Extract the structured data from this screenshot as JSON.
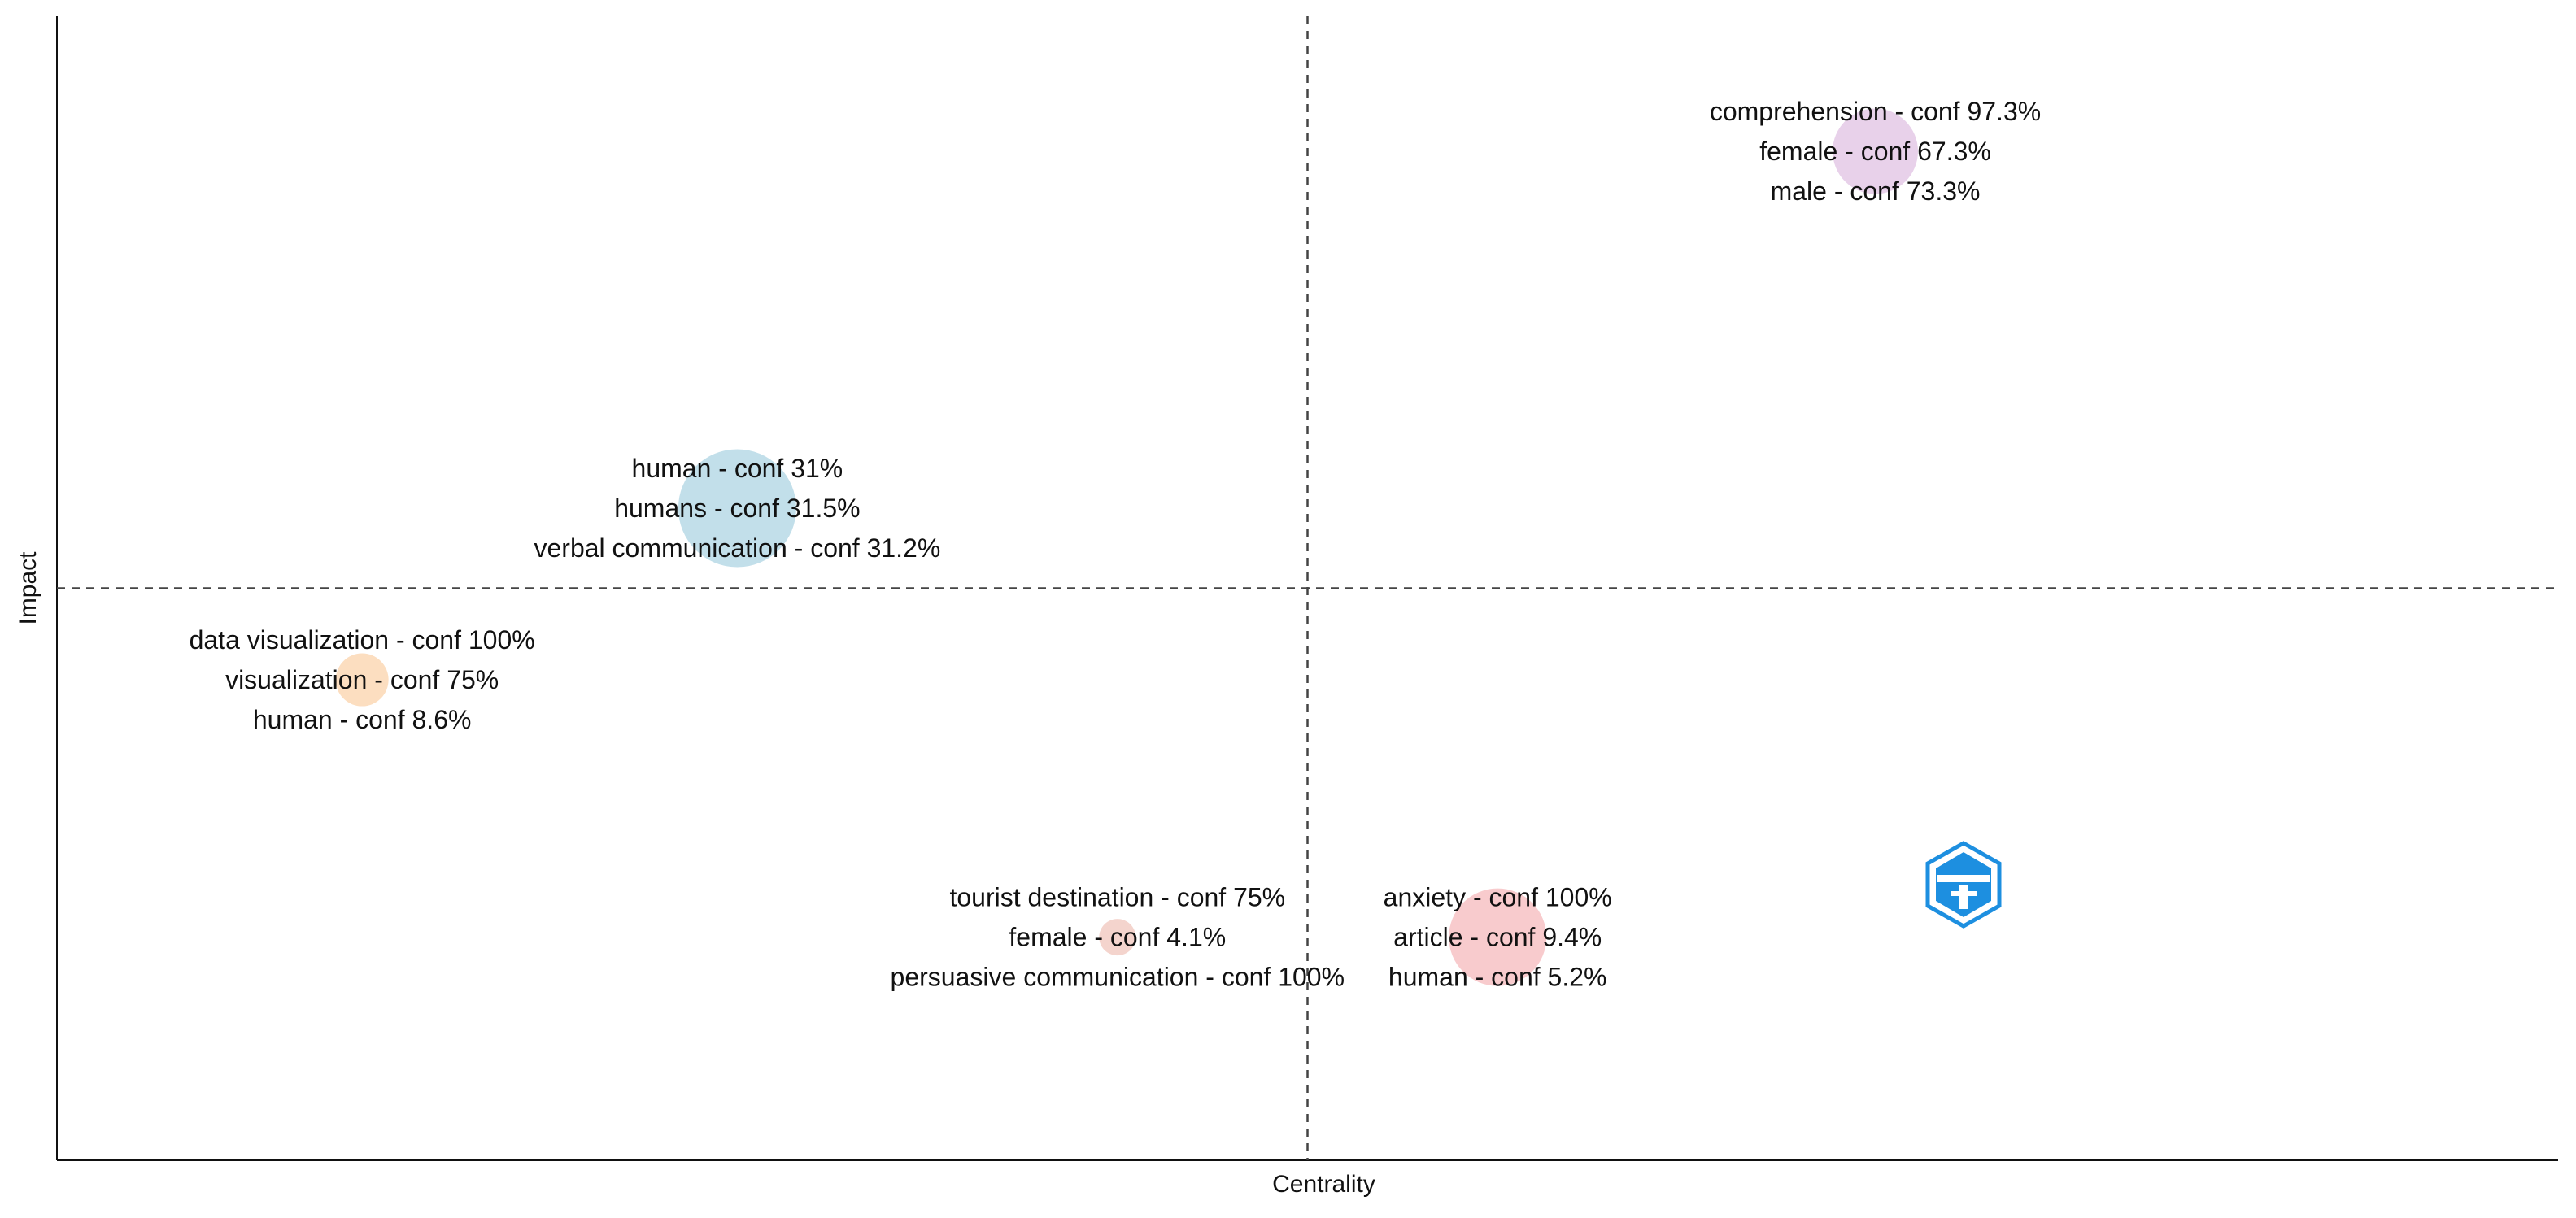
{
  "chart_data": {
    "type": "scatter",
    "subtype": "thematic-map",
    "title": "",
    "xlabel": "Centrality",
    "ylabel": "Impact",
    "xlim": [
      0,
      1
    ],
    "ylim": [
      0,
      1
    ],
    "divider_x": 0.5,
    "divider_y": 0.5,
    "clusters": [
      {
        "x": 0.727,
        "y": 0.882,
        "size": 42,
        "color": "#e7cfe9",
        "labels": [
          "comprehension - conf 97.3%",
          "female - conf 67.3%",
          "male - conf 73.3%"
        ]
      },
      {
        "x": 0.272,
        "y": 0.57,
        "size": 58,
        "color": "#bfdde9",
        "labels": [
          "human - conf 31%",
          "humans - conf 31.5%",
          "verbal communication - conf 31.2%"
        ]
      },
      {
        "x": 0.122,
        "y": 0.42,
        "size": 26,
        "color": "#fcdcbd",
        "labels": [
          "data visualization - conf 100%",
          "visualization - conf 75%",
          "human - conf 8.6%"
        ]
      },
      {
        "x": 0.424,
        "y": 0.195,
        "size": 18,
        "color": "#f3d2ca",
        "labels": [
          "tourist destination - conf 75%",
          "female - conf 4.1%",
          "persuasive communication - conf 100%"
        ]
      },
      {
        "x": 0.576,
        "y": 0.195,
        "size": 48,
        "color": "#f8c8ca",
        "labels": [
          "anxiety - conf 100%",
          "article - conf 9.4%",
          "human - conf 5.2%"
        ]
      }
    ]
  },
  "logo": {
    "icon": "bibliometrix-logo-icon",
    "color": "#1d8fe0"
  }
}
